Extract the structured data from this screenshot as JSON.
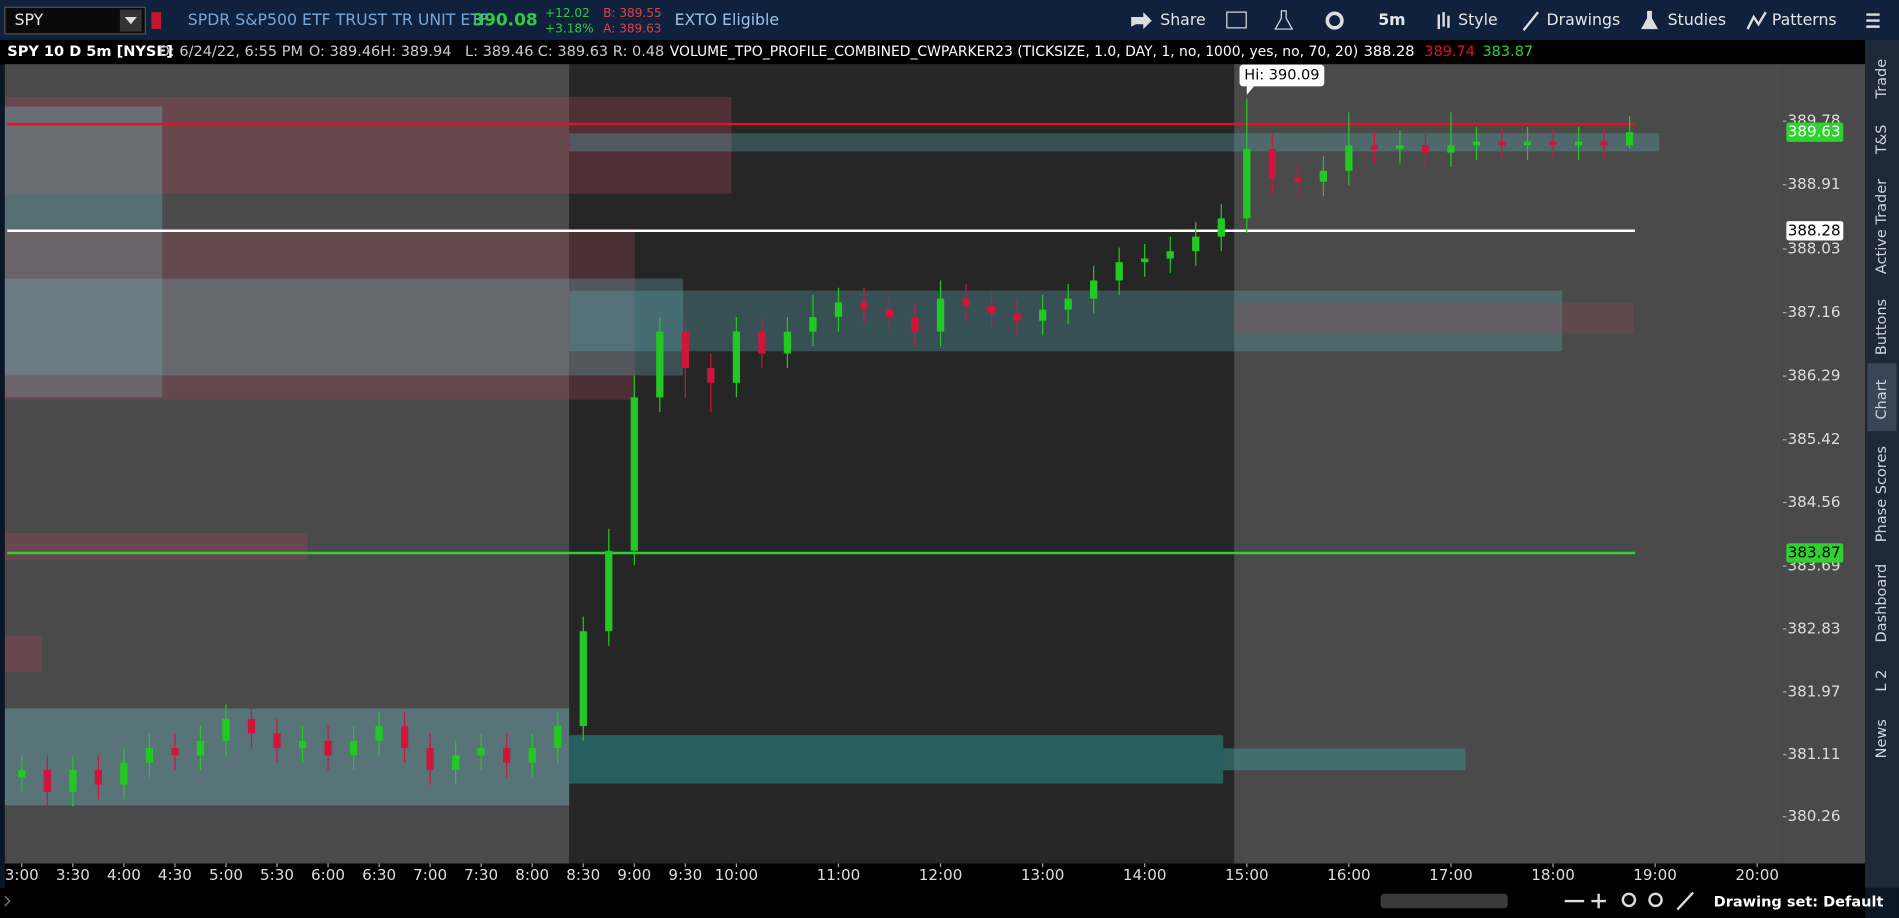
{
  "toolbar": {
    "symbol": "SPY",
    "description": "SPDR S&P500 ETF TRUST TR UNIT ETF",
    "last": "390.08",
    "change": "+12.02",
    "change_pct": "+3.18%",
    "bid": "B: 389.55",
    "ask": "A: 389.63",
    "exto": "EXTO Eligible",
    "buttons": [
      "Share",
      "5m",
      "Style",
      "Drawings",
      "Studies",
      "Patterns"
    ]
  },
  "info_bar": {
    "chart_title": "SPY 10 D 5m [NYSE]",
    "date": "D: 6/24/22, 6:55 PM",
    "open": "O: 389.46",
    "high": "H: 389.94",
    "low": "L: 389.46",
    "close": "C: 389.63",
    "range": "R: 0.48",
    "study": "VOLUME_TPO_PROFILE_COMBINED_CWPARKER23 (TICKSIZE, 1.0, DAY, 1, no, 1000, yes, no, 70, 20)"
  },
  "chart_data": {
    "type": "candlestick",
    "up_color": "#22c922",
    "down_color": "#d0153a",
    "x": [
      3,
      3.25,
      3.5,
      3.75,
      4,
      4.25,
      4.5,
      4.75,
      5,
      5.25,
      5.5,
      5.75,
      6,
      6.25,
      6.5,
      6.75,
      7,
      7.25,
      7.5,
      7.75,
      8,
      8.25,
      8.5,
      8.75,
      9,
      9.25,
      9.5,
      9.75,
      10,
      10.25,
      10.5,
      10.75,
      11,
      11.25,
      11.5,
      11.75,
      12,
      12.25,
      12.5,
      12.75,
      13,
      13.25,
      13.5,
      13.75,
      14,
      14.25,
      14.5,
      14.75,
      15,
      15.25,
      15.5,
      15.75,
      16,
      16.25,
      16.5,
      16.75,
      17,
      17.25,
      17.5,
      17.75,
      18,
      18.25,
      18.5,
      18.75
    ],
    "open": [
      380.8,
      380.9,
      380.6,
      380.9,
      380.7,
      381.0,
      381.2,
      381.1,
      381.3,
      381.6,
      381.4,
      381.2,
      381.3,
      381.1,
      381.3,
      381.5,
      381.2,
      380.9,
      381.1,
      381.2,
      381.0,
      381.2,
      381.5,
      382.8,
      383.9,
      386.0,
      386.9,
      386.4,
      386.2,
      386.9,
      386.6,
      386.9,
      387.1,
      387.3,
      387.2,
      387.1,
      386.9,
      387.35,
      387.25,
      387.15,
      387.05,
      387.2,
      387.35,
      387.6,
      387.85,
      387.9,
      388.0,
      388.2,
      388.45,
      389.4,
      389.0,
      388.95,
      389.1,
      389.45,
      389.4,
      389.45,
      389.35,
      389.45,
      389.5,
      389.45,
      389.5,
      389.45,
      389.5,
      389.45
    ],
    "high": [
      381.1,
      381.1,
      381.1,
      381.1,
      381.2,
      381.4,
      381.4,
      381.5,
      381.8,
      381.8,
      381.6,
      381.5,
      381.5,
      381.5,
      381.7,
      381.7,
      381.4,
      381.3,
      381.4,
      381.4,
      381.4,
      381.7,
      383.0,
      384.2,
      386.3,
      387.1,
      387.1,
      386.6,
      387.1,
      387.1,
      387.1,
      387.4,
      387.5,
      387.5,
      387.4,
      387.3,
      387.6,
      387.55,
      387.45,
      387.35,
      387.4,
      387.55,
      387.8,
      388.05,
      388.1,
      388.2,
      388.4,
      388.65,
      390.09,
      389.6,
      389.2,
      389.3,
      389.9,
      389.65,
      389.65,
      389.65,
      389.9,
      389.7,
      389.7,
      389.7,
      389.7,
      389.7,
      389.7,
      389.85
    ],
    "low": [
      380.6,
      380.4,
      380.4,
      380.5,
      380.5,
      380.8,
      380.9,
      380.9,
      381.1,
      381.2,
      381.0,
      381.0,
      380.9,
      380.9,
      381.1,
      381.0,
      380.7,
      380.7,
      380.9,
      380.8,
      380.8,
      381.0,
      381.3,
      382.6,
      383.7,
      385.8,
      386.0,
      385.8,
      386.0,
      386.4,
      386.4,
      386.7,
      386.9,
      387.0,
      386.9,
      386.7,
      386.7,
      387.05,
      386.95,
      386.85,
      386.85,
      387.0,
      387.15,
      387.4,
      387.65,
      387.7,
      387.8,
      388.0,
      388.25,
      388.8,
      388.75,
      388.75,
      388.9,
      389.2,
      389.2,
      389.15,
      389.15,
      389.25,
      389.25,
      389.25,
      389.25,
      389.25,
      389.25,
      389.4
    ],
    "close": [
      380.9,
      380.6,
      380.9,
      380.7,
      381.0,
      381.2,
      381.1,
      381.3,
      381.6,
      381.4,
      381.2,
      381.3,
      381.1,
      381.3,
      381.5,
      381.2,
      380.9,
      381.1,
      381.2,
      381.0,
      381.2,
      381.5,
      382.8,
      383.9,
      386.0,
      386.9,
      386.4,
      386.2,
      386.9,
      386.6,
      386.9,
      387.1,
      387.3,
      387.2,
      387.1,
      386.9,
      387.35,
      387.25,
      387.15,
      387.05,
      387.2,
      387.35,
      387.6,
      387.85,
      387.9,
      388.0,
      388.2,
      388.45,
      389.4,
      389.0,
      388.95,
      389.1,
      389.45,
      389.4,
      389.45,
      389.35,
      389.45,
      389.5,
      389.45,
      389.5,
      389.45,
      389.5,
      389.45,
      389.63
    ],
    "ylim": [
      379.62,
      390.56
    ],
    "yticks": [
      389.78,
      388.91,
      388.03,
      387.16,
      386.29,
      385.42,
      384.56,
      383.69,
      382.83,
      381.97,
      381.11,
      380.26
    ],
    "xlim": [
      2.834,
      20.25
    ],
    "xticks": [
      {
        "value": 3,
        "label": "3:00"
      },
      {
        "value": 3.5,
        "label": "3:30"
      },
      {
        "value": 4,
        "label": "4:00"
      },
      {
        "value": 4.5,
        "label": "4:30"
      },
      {
        "value": 5,
        "label": "5:00"
      },
      {
        "value": 5.5,
        "label": "5:30"
      },
      {
        "value": 6,
        "label": "6:00"
      },
      {
        "value": 6.5,
        "label": "6:30"
      },
      {
        "value": 7,
        "label": "7:00"
      },
      {
        "value": 7.5,
        "label": "7:30"
      },
      {
        "value": 8,
        "label": "8:00"
      },
      {
        "value": 8.5,
        "label": "8:30"
      },
      {
        "value": 9,
        "label": "9:00"
      },
      {
        "value": 9.5,
        "label": "9:30"
      },
      {
        "value": 10,
        "label": "10:00"
      },
      {
        "value": 11,
        "label": "11:00"
      },
      {
        "value": 12,
        "label": "12:00"
      },
      {
        "value": 13,
        "label": "13:00"
      },
      {
        "value": 14,
        "label": "14:00"
      },
      {
        "value": 15,
        "label": "15:00"
      },
      {
        "value": 16,
        "label": "16:00"
      },
      {
        "value": 17,
        "label": "17:00"
      },
      {
        "value": 18,
        "label": "18:00"
      },
      {
        "value": 19,
        "label": "19:00"
      },
      {
        "value": 20,
        "label": "20:00"
      }
    ],
    "levels": [
      {
        "value": 388.28,
        "color": "#ffffff"
      },
      {
        "value": 389.74,
        "color": "#e0141e"
      },
      {
        "value": 383.87,
        "color": "#2fd12f"
      }
    ],
    "hi_label": "Hi: 390.09"
  },
  "sidebar": [
    "Trade",
    "T&S",
    "Active Trader",
    "Buttons",
    "Chart",
    "Phase Scores",
    "Dashboard",
    "L 2",
    "News"
  ],
  "footer": {
    "drawing_set": "Drawing set: Default"
  }
}
